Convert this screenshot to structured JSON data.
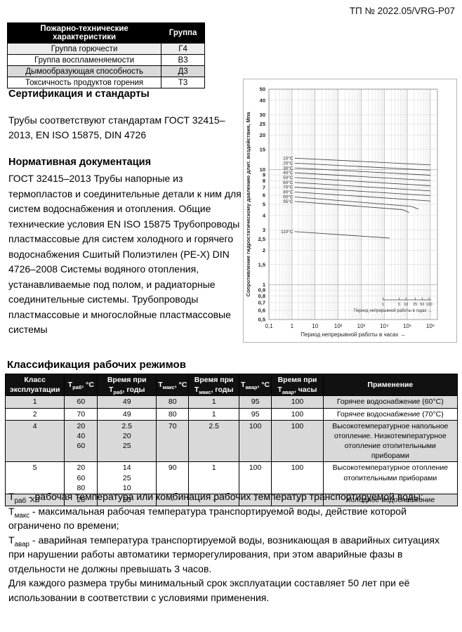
{
  "page": {
    "doc_number": "ТП № 2022.05/VRG-P07"
  },
  "fire_table": {
    "headers": [
      "Пожарно-технические характеристики",
      "Группа"
    ],
    "rows": [
      {
        "name": "Группа горючести",
        "group": "Г4"
      },
      {
        "name": "Группа воспламеняемости",
        "group": "В3"
      },
      {
        "name": "Дымообразующая способность",
        "group": "Д3"
      },
      {
        "name": "Токсичность продуктов горения",
        "group": "Т3"
      }
    ]
  },
  "certification": {
    "heading": "Сертификация и стандарты",
    "body": "Трубы соответствуют стандартам ГОСТ 32415–2013, EN ISO 15875, DIN 4726"
  },
  "normative": {
    "heading": "Нормативная документация",
    "body": "ГОСТ 32415–2013 Трубы напорные из термопластов и соединительные детали к ним для систем водоснабжения и отопления. Общие технические условия EN ISO 15875 Трубопроводы пластмассовые для систем холодного и горячего водоснабжения Сшитый Полиэтилен (PE-X) DIN 4726–2008 Системы водяного отопления, устанавливаемые под полом, и радиаторные соединительные системы. Трубопроводы пластмассовые и многослойные пластмассовые системы"
  },
  "chart_data": {
    "type": "line",
    "xlabel": "Период непрерывной работы в часах →",
    "ylabel": "Сопротивление гидростатическому давлению длит. воздействия, Мпа",
    "x_scale": "log",
    "y_scale": "log",
    "xlim": [
      0.1,
      1000000
    ],
    "ylim": [
      0.5,
      50
    ],
    "x_ticks": [
      {
        "v": 0.1,
        "label": "0,1"
      },
      {
        "v": 1,
        "label": "1"
      },
      {
        "v": 10,
        "label": "10"
      },
      {
        "v": 100,
        "label": "10²"
      },
      {
        "v": 1000,
        "label": "10³"
      },
      {
        "v": 10000,
        "label": "10⁴"
      },
      {
        "v": 100000,
        "label": "10⁵"
      },
      {
        "v": 1000000,
        "label": "10⁶"
      }
    ],
    "y_ticks": [
      {
        "v": 50,
        "label": "50"
      },
      {
        "v": 40,
        "label": "40"
      },
      {
        "v": 30,
        "label": "30"
      },
      {
        "v": 25,
        "label": "25"
      },
      {
        "v": 20,
        "label": "20"
      },
      {
        "v": 15,
        "label": "15"
      },
      {
        "v": 10,
        "label": "10"
      },
      {
        "v": 9,
        "label": "9"
      },
      {
        "v": 8,
        "label": "8"
      },
      {
        "v": 7,
        "label": "7"
      },
      {
        "v": 6,
        "label": "6"
      },
      {
        "v": 5,
        "label": "5"
      },
      {
        "v": 4,
        "label": "4"
      },
      {
        "v": 3,
        "label": "3"
      },
      {
        "v": 2.5,
        "label": "2,5"
      },
      {
        "v": 2,
        "label": "2"
      },
      {
        "v": 1.5,
        "label": "1,5"
      },
      {
        "v": 1,
        "label": "1"
      },
      {
        "v": 0.9,
        "label": "0,9"
      },
      {
        "v": 0.8,
        "label": "0,8"
      },
      {
        "v": 0.7,
        "label": "0,7"
      },
      {
        "v": 0.6,
        "label": "0,6"
      },
      {
        "v": 0.5,
        "label": "0,5"
      }
    ],
    "series": [
      {
        "name": "10°C",
        "points": [
          [
            1.3,
            12.6
          ],
          [
            1000000,
            11.0
          ]
        ]
      },
      {
        "name": "20°C",
        "points": [
          [
            1.3,
            11.4
          ],
          [
            1000000,
            9.9
          ]
        ]
      },
      {
        "name": "30°C",
        "points": [
          [
            1.3,
            10.35
          ],
          [
            1000000,
            8.95
          ]
        ]
      },
      {
        "name": "40°C",
        "points": [
          [
            1.3,
            9.4
          ],
          [
            1000000,
            8.05
          ]
        ]
      },
      {
        "name": "50°C",
        "points": [
          [
            1.3,
            8.55
          ],
          [
            1000000,
            7.25
          ]
        ]
      },
      {
        "name": "60°C",
        "points": [
          [
            1.3,
            7.75
          ],
          [
            1000000,
            6.55
          ]
        ]
      },
      {
        "name": "70°C",
        "points": [
          [
            1.3,
            7.05
          ],
          [
            1000000,
            5.95
          ]
        ]
      },
      {
        "name": "80°C",
        "points": [
          [
            1.3,
            6.4
          ],
          [
            1000000,
            5.35
          ]
        ]
      },
      {
        "name": "90°C",
        "points": [
          [
            1.3,
            5.8
          ],
          [
            150000,
            4.8
          ],
          [
            300000,
            4.55
          ]
        ]
      },
      {
        "name": "95°C",
        "points": [
          [
            1.3,
            5.3
          ],
          [
            60000,
            4.5
          ],
          [
            120000,
            4.25
          ]
        ]
      },
      {
        "name": "110°C",
        "points": [
          [
            1.3,
            2.9
          ],
          [
            17000,
            2.55
          ]
        ]
      }
    ],
    "secondary_axis": {
      "label": "Период непрерывной работы в годах →",
      "hours_per_year": 8760,
      "ticks": [
        {
          "v": 1,
          "label": "1"
        },
        {
          "v": 5,
          "label": "5"
        },
        {
          "v": 10,
          "label": "10"
        },
        {
          "v": 25,
          "label": "25"
        },
        {
          "v": 50,
          "label": "50"
        },
        {
          "v": 100,
          "label": "100"
        }
      ]
    },
    "grid": true,
    "line_color": "#4a4a4a"
  },
  "classification": {
    "heading": "Классификация рабочих режимов",
    "headers": [
      "Класс эксплуатации",
      "Т{раб}, °С",
      "Время при Т{раб}, годы",
      "Т{макс}, °С",
      "Время при Т{макс}, годы",
      "Т{авар}, °С",
      "Время при Т{авар}, часы",
      "Применение"
    ],
    "rows": [
      {
        "cells": [
          [
            "1"
          ],
          [
            "60"
          ],
          [
            "49"
          ],
          [
            "80"
          ],
          [
            "1"
          ],
          [
            "95"
          ],
          [
            "100"
          ],
          [
            "Горячее водоснабжение (60°С)"
          ]
        ]
      },
      {
        "cells": [
          [
            "2"
          ],
          [
            "70"
          ],
          [
            "49"
          ],
          [
            "80"
          ],
          [
            "1"
          ],
          [
            "95"
          ],
          [
            "100"
          ],
          [
            "Горячее водоснабжение (70°С)"
          ]
        ]
      },
      {
        "cells": [
          [
            "4"
          ],
          [
            "20",
            "40",
            "60"
          ],
          [
            "2.5",
            "20",
            "25"
          ],
          [
            "70"
          ],
          [
            "2.5"
          ],
          [
            "100"
          ],
          [
            "100"
          ],
          [
            "Высокотемпературное напольное отопление. Низкотемпературное отопление отопительными приборами"
          ]
        ]
      },
      {
        "cells": [
          [
            "5"
          ],
          [
            "20",
            "60",
            "80"
          ],
          [
            "14",
            "25",
            "10"
          ],
          [
            "90"
          ],
          [
            "1"
          ],
          [
            "100"
          ],
          [
            "100"
          ],
          [
            "Высокотемпературное отопление отопительными приборами"
          ]
        ]
      },
      {
        "cells": [
          [
            "ХВ"
          ],
          [
            "20"
          ],
          [
            "50"
          ],
          [
            "-"
          ],
          [
            "-"
          ],
          [
            "-"
          ],
          [
            "-"
          ],
          [
            "Холодное водоснабжение"
          ]
        ]
      }
    ]
  },
  "footnotes": [
    "Т{раб} - рабочая температура или комбинация рабочих температур транспортируемой воды;",
    "Т{макс} - максимальная рабочая температура транспортируемой воды, действие которой ограничено по времени;",
    "Т{авар} - аварийная температура транспортируемой воды, возникающая в аварийных ситуациях при нарушении работы автоматики терморегулирования, при этом аварийные фазы в отдельности не должны превышать 3 часов.",
    "Для каждого размера трубы минимальный срок эксплуатации составляет 50 лет при её использовании в соответствии с условиями применения."
  ],
  "colors": {
    "table_header_bg": "#000000",
    "row_shade_gray": "#d9d9d9",
    "row_shade_light": "#ededed",
    "chart_line": "#4a4a4a",
    "grid_minor": "#d6d6d6",
    "grid_major": "#aaaaaa"
  }
}
